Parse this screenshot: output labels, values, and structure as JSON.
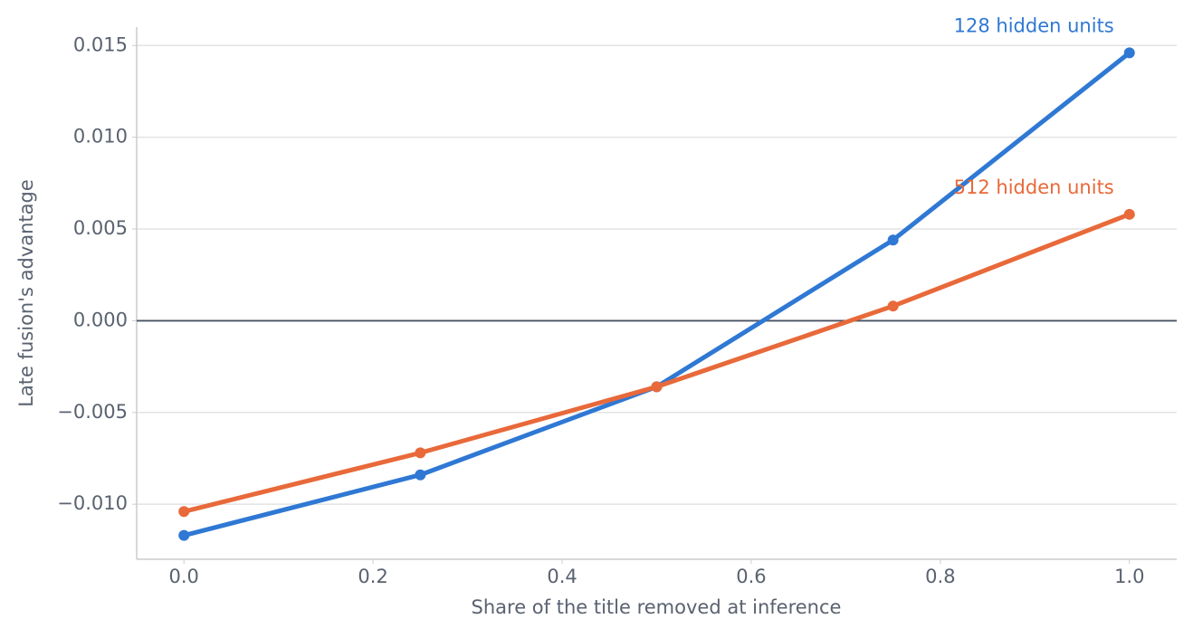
{
  "chart_data": {
    "type": "line",
    "x_label": "Share of the title removed at inference",
    "y_label": "Late fusion's advantage",
    "x": [
      0,
      0.25,
      0.5,
      0.75,
      1
    ],
    "series": [
      {
        "name": "128 hidden units",
        "color": "#2f78d4",
        "values": [
          -0.0117,
          -0.0084,
          -0.0036,
          0.0044,
          0.0146
        ]
      },
      {
        "name": "512 hidden units",
        "color": "#e8693a",
        "values": [
          -0.0104,
          -0.0072,
          -0.0036,
          0.0008,
          0.0058
        ]
      }
    ],
    "xlim": [
      -0.05,
      1.05
    ],
    "ylim": [
      -0.013,
      0.016
    ],
    "xticks": [
      {
        "value": 0,
        "label": "0.0"
      },
      0.2,
      0.4,
      0.6,
      0.8,
      {
        "value": 1,
        "label": "1.0"
      }
    ],
    "yticks": [
      {
        "value": -0.01,
        "label": "−0.010"
      },
      {
        "value": -0.005,
        "label": "−0.005"
      },
      {
        "value": 0,
        "label": "0.000"
      },
      0.005,
      {
        "value": 0.01,
        "label": "0.010"
      },
      0.015
    ],
    "grid": true,
    "zero_line": true,
    "direct_labels": true
  }
}
